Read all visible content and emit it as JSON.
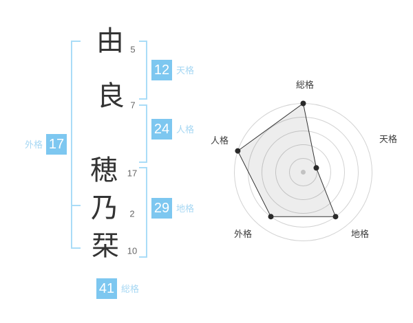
{
  "name_panel": {
    "characters": [
      {
        "char": "由",
        "strokes": "5"
      },
      {
        "char": "良",
        "strokes": "7"
      },
      {
        "char": "穂",
        "strokes": "17"
      },
      {
        "char": "乃",
        "strokes": "2"
      },
      {
        "char": "栞",
        "strokes": "10"
      }
    ],
    "badges": [
      {
        "label": "天格",
        "value": "12"
      },
      {
        "label": "人格",
        "value": "24"
      },
      {
        "label": "地格",
        "value": "29"
      },
      {
        "label": "外格",
        "value": "17"
      },
      {
        "label": "総格",
        "value": "41"
      }
    ]
  },
  "chart_data": {
    "type": "radar",
    "axes": [
      "総格",
      "天格",
      "地格",
      "外格",
      "人格"
    ],
    "values": [
      100,
      20,
      80,
      80,
      100
    ],
    "axis_numbers": {
      "総格": 41,
      "天格": 12,
      "地格": 29,
      "外格": 17,
      "人格": 24
    },
    "max": 100,
    "rings": 5,
    "grid": "concentric-circles",
    "legend": "none",
    "title": ""
  },
  "colors": {
    "badge_blue": "#7dc7f0",
    "bracket_blue": "#a9dcf7",
    "badge_label_blue": "#a6d7f3",
    "ink": "#333333",
    "stroke_number_gray": "#666666",
    "ring_gray": "#d2d2d2",
    "center_dot_gray": "#c2c2c2",
    "polygon_stroke": "#333333",
    "polygon_fill": "rgba(0,0,0,0.07)",
    "point_black": "#2a2a2a"
  }
}
